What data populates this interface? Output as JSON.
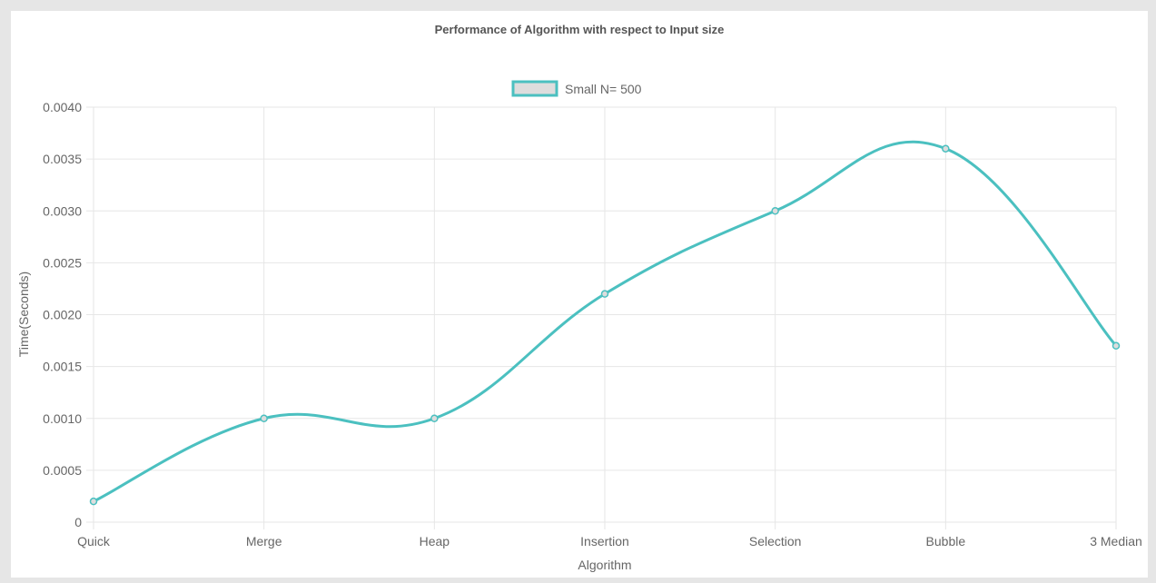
{
  "chart_data": {
    "type": "line",
    "title": "Performance of Algorithm with respect to Input size",
    "xlabel": "Algorithm",
    "ylabel": "Time(Seconds)",
    "categories": [
      "Quick",
      "Merge",
      "Heap",
      "Insertion",
      "Selection",
      "Bubble",
      "3 Median"
    ],
    "ylim": [
      0,
      0.004
    ],
    "yticks": [
      0,
      0.0005,
      0.001,
      0.0015,
      0.002,
      0.0025,
      0.003,
      0.0035,
      0.004
    ],
    "ytick_labels": [
      "0",
      "0.0005",
      "0.0010",
      "0.0015",
      "0.0020",
      "0.0025",
      "0.0030",
      "0.0035",
      "0.0040"
    ],
    "grid": true,
    "legend_position": "top-center",
    "series": [
      {
        "name": "Small N= 500",
        "values": [
          0.0002,
          0.001,
          0.001,
          0.0022,
          0.003,
          0.0036,
          0.0017
        ],
        "color": "#4bc0c0",
        "fill": "#dddddd"
      }
    ]
  }
}
